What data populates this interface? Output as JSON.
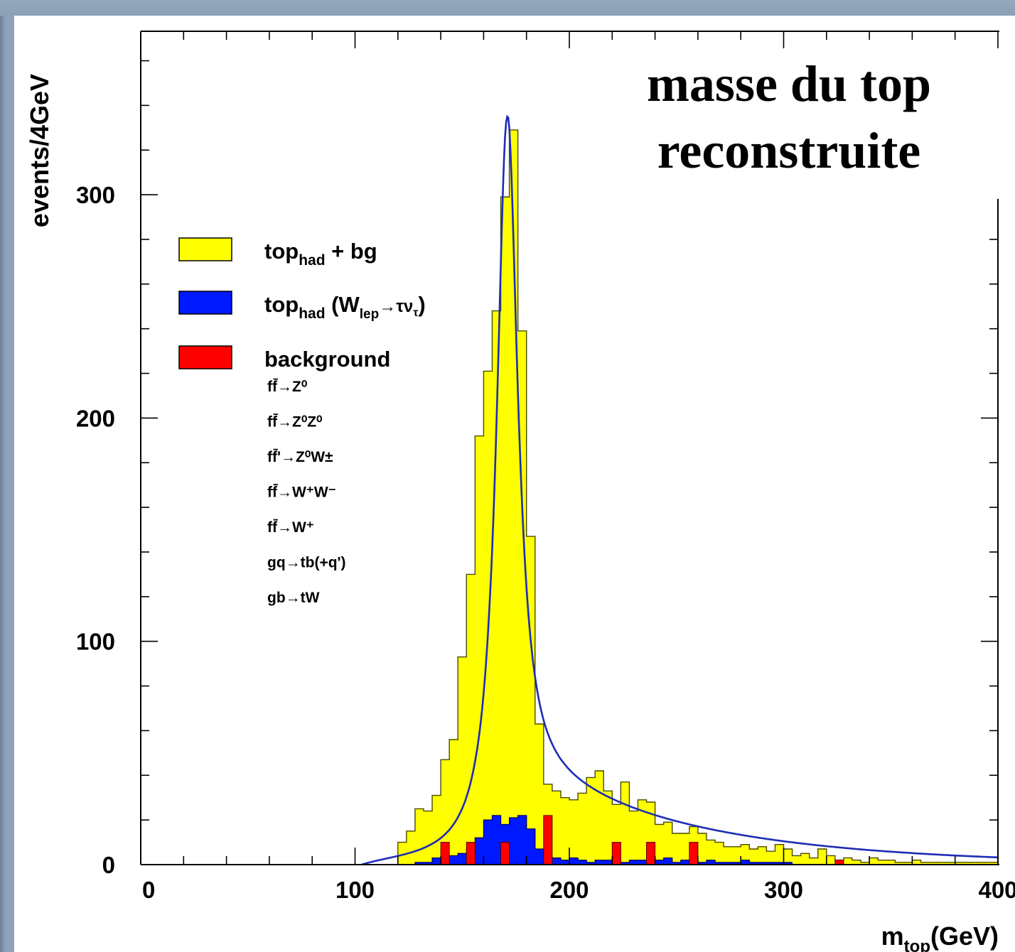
{
  "chart_data": {
    "type": "histogram",
    "title_line1": "masse du top",
    "title_line2": "reconstruite",
    "ylabel": "events/4GeV",
    "xlabel_main": "m",
    "xlabel_sub": "top",
    "xlabel_unit": "(GeV)",
    "xlim": [
      0,
      400
    ],
    "ylim": [
      0,
      375
    ],
    "xticks": [
      0,
      100,
      200,
      300,
      400
    ],
    "xtick_labels": [
      "0",
      "100",
      "200",
      "300",
      "400"
    ],
    "yticks": [
      0,
      100,
      200,
      300
    ],
    "ytick_labels": [
      "0",
      "100",
      "200",
      "300"
    ],
    "bin_width": 4,
    "legend": [
      {
        "label": "top",
        "sub": "had",
        "rest": " + bg",
        "color": "#ffff00"
      },
      {
        "label": "top",
        "sub": "had",
        "rest": " (W",
        "sub2": "lep",
        "rest2": "→τν",
        "sub3": "τ",
        "rest3": ")",
        "color": "#0018ff"
      },
      {
        "label": "background",
        "color": "#ff0000"
      }
    ],
    "processes": [
      "ff̄→Z⁰",
      "ff̄→Z⁰Z⁰",
      "ff̄'→Z⁰W±",
      "ff̄→W⁺W⁻",
      "ff̄→W⁺",
      "gq→tb(+q')",
      "gb→tW"
    ],
    "series": [
      {
        "name": "top_had + bg",
        "color": "#ffff00",
        "x_start": 120,
        "values": [
          10,
          15,
          25,
          24,
          31,
          47,
          56,
          93,
          130,
          192,
          221,
          248,
          299,
          329,
          239,
          147,
          63,
          36,
          33,
          30,
          29,
          32,
          39,
          42,
          33,
          27,
          37,
          24,
          29,
          28,
          18,
          19,
          14,
          14,
          17,
          14,
          11,
          10,
          8,
          8,
          9,
          7,
          8,
          6,
          9,
          7,
          4,
          5,
          3,
          7,
          4,
          2,
          3,
          2,
          1,
          3,
          2,
          2,
          1,
          1,
          2,
          1,
          1,
          1,
          1,
          1,
          1,
          1,
          1,
          1
        ]
      },
      {
        "name": "top_had (W_lep→τν_τ)",
        "color": "#0018ff",
        "x_start": 128,
        "values": [
          1,
          1,
          3,
          2,
          4,
          5,
          7,
          12,
          20,
          22,
          18,
          21,
          22,
          16,
          7,
          4,
          3,
          2,
          3,
          2,
          1,
          2,
          2,
          3,
          1,
          2,
          2,
          3,
          2,
          3,
          1,
          2,
          1,
          1,
          2,
          1,
          1,
          1,
          2,
          1,
          1,
          1,
          1,
          1
        ]
      },
      {
        "name": "background",
        "color": "#ff0000",
        "bins": [
          [
            140,
            10
          ],
          [
            152,
            10
          ],
          [
            168,
            10
          ],
          [
            188,
            22
          ],
          [
            220,
            10
          ],
          [
            236,
            10
          ],
          [
            256,
            10
          ],
          [
            324,
            2
          ]
        ]
      }
    ],
    "fit_curve": {
      "name": "fit",
      "color": "#1c2db4",
      "peak_x": 171,
      "peak_y": 335
    }
  }
}
